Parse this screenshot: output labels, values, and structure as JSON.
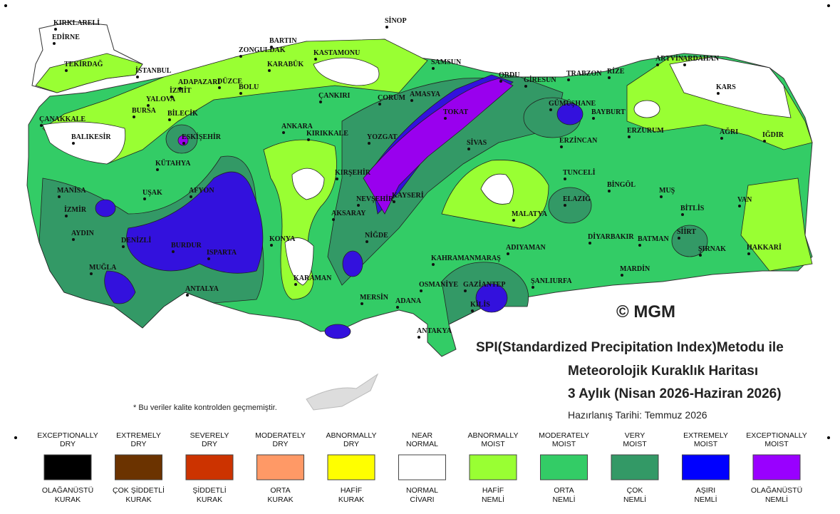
{
  "header": {
    "title_lines": [
      "SPI(Standardized Precipitation Index)Metodu ile",
      "Meteorolojik Kuraklık Haritası",
      "3 Aylık (Nisan 2026-Haziran 2026)"
    ],
    "date": "Hazırlanış Tarihi: Temmuz 2026"
  },
  "note": "* Bu veriler kalite kontrolden geçmemiştir.",
  "logo": "© MGM",
  "cities": [
    "KIRKLARELİ",
    "EDİRNE",
    "TEKİRDAĞ",
    "İSTANBUL",
    "SİNOP",
    "BARTIN",
    "ZONGULDAK",
    "KASTAMONU",
    "KARABÜK",
    "SAMSUN",
    "ORDU",
    "GİRESUN",
    "TRABZON",
    "RİZE",
    "ARTVİN",
    "ARDAHAN",
    "KARS",
    "IĞDIR",
    "ADAPAZARI",
    "DÜZCE",
    "BOLU",
    "YALOVA",
    "İZMİT",
    "BURSA",
    "BİLECİK",
    "ÇANAKKALE",
    "BALIKESİR",
    "ESKİŞEHİR",
    "ÇANKIRI",
    "ÇORUM",
    "AMASYA",
    "TOKAT",
    "GÜMÜŞHANE",
    "BAYBURT",
    "ERZURUM",
    "AĞRI",
    "ANKARA",
    "KIRIKKALE",
    "YOZGAT",
    "SİVAS",
    "ERZİNCAN",
    "KÜTAHYA",
    "TUNCELİ",
    "BİNGÖL",
    "MUŞ",
    "MANİSA",
    "UŞAK",
    "AFYON",
    "KIRŞEHİR",
    "NEVŞEHİR",
    "KAYSERİ",
    "ELAZIĞ",
    "BİTLİS",
    "VAN",
    "İZMİR",
    "AKSARAY",
    "MALATYA",
    "AYDIN",
    "DENİZLİ",
    "BURDUR",
    "ISPARTA",
    "KONYA",
    "NİĞDE",
    "DİYARBAKIR",
    "BATMAN",
    "SİİRT",
    "ŞIRNAK",
    "HAKKARİ",
    "ADIYAMAN",
    "KAHRAMANMARAŞ",
    "MARDİN",
    "MUĞLA",
    "KARAMAN",
    "OSMANİYE",
    "GAZİANTEP",
    "ŞANLIURFA",
    "ANTALYA",
    "MERSİN",
    "ADANA",
    "KİLİS",
    "ANTAKYA"
  ],
  "legend": [
    {
      "en": [
        "EXCEPTIONALLY",
        "DRY"
      ],
      "tr": [
        "OLAĞANÜSTÜ",
        "KURAK"
      ],
      "color": "#000000"
    },
    {
      "en": [
        "EXTREMELY",
        "DRY"
      ],
      "tr": [
        "ÇOK ŞİDDETLİ",
        "KURAK"
      ],
      "color": "#6b3300"
    },
    {
      "en": [
        "SEVERELY",
        "DRY"
      ],
      "tr": [
        "ŞİDDETLİ",
        "KURAK"
      ],
      "color": "#cc3300"
    },
    {
      "en": [
        "MODERATELY",
        "DRY"
      ],
      "tr": [
        "ORTA",
        "KURAK"
      ],
      "color": "#ff9966"
    },
    {
      "en": [
        "ABNORMALLY",
        "DRY"
      ],
      "tr": [
        "HAFİF",
        "KURAK"
      ],
      "color": "#ffff00"
    },
    {
      "en": [
        "NEAR",
        "NORMAL"
      ],
      "tr": [
        "NORMAL",
        "CİVARI"
      ],
      "color": "#ffffff"
    },
    {
      "en": [
        "ABNORMALLY",
        "MOIST"
      ],
      "tr": [
        "HAFİF",
        "NEMLİ"
      ],
      "color": "#99ff33"
    },
    {
      "en": [
        "MODERATELY",
        "MOIST"
      ],
      "tr": [
        "ORTA",
        "NEMLİ"
      ],
      "color": "#33cc66"
    },
    {
      "en": [
        "VERY",
        "MOIST"
      ],
      "tr": [
        "ÇOK",
        "NEMLİ"
      ],
      "color": "#339966"
    },
    {
      "en": [
        "EXTREMELY",
        "MOIST"
      ],
      "tr": [
        "AŞIRI",
        "NEMLİ"
      ],
      "color": "#0000ff"
    },
    {
      "en": [
        "EXCEPTIONALLY",
        "MOIST"
      ],
      "tr": [
        "OLAĞANÜSTÜ",
        "NEMLİ"
      ],
      "color": "#9900ff"
    }
  ]
}
